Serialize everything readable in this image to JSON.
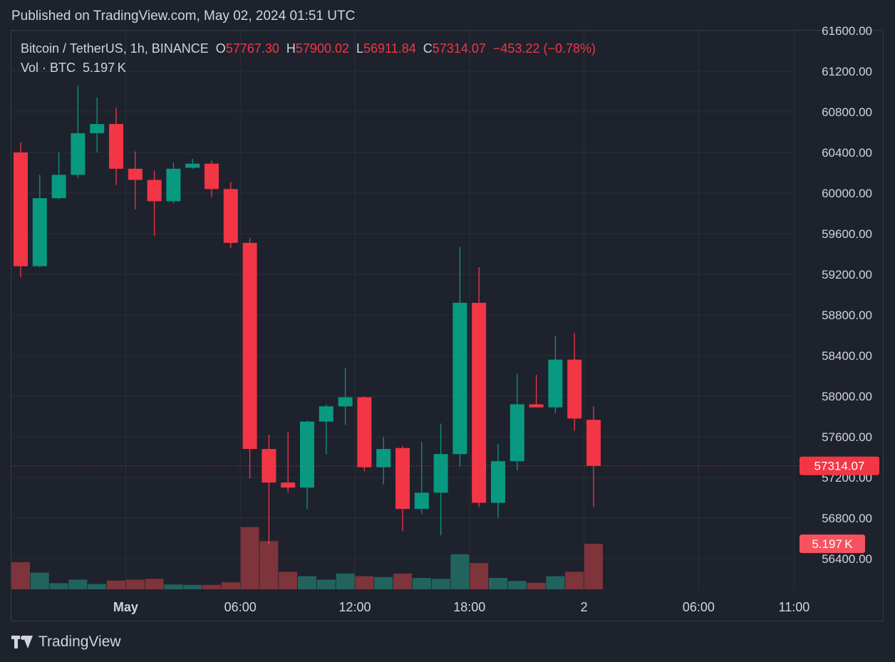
{
  "header": {
    "published": "Published on TradingView.com, May 02, 2024 01:51 UTC"
  },
  "legend": {
    "symbol": "Bitcoin / TetherUS, 1h, BINANCE",
    "o_label": "O",
    "o_value": "57767.30",
    "h_label": "H",
    "h_value": "57900.02",
    "l_label": "L",
    "l_value": "56911.84",
    "c_label": "C",
    "c_value": "57314.07",
    "change": "−453.22 (−0.78%)",
    "vol_label": "Vol · BTC",
    "vol_value": "5.197 K"
  },
  "footer": {
    "brand": "TradingView",
    "logo_icon": "tradingview-logo-icon"
  },
  "colors": {
    "background": "#1e222d",
    "up": "#089981",
    "down": "#f23645",
    "up_volume": "#22645d",
    "down_volume": "#7d343a",
    "grid": "#2a2e39",
    "text": "#d1d4dc"
  },
  "chart_data": {
    "type": "candlestick",
    "symbol": "Bitcoin / TetherUS",
    "interval": "1h",
    "price_ticks": [
      "56400.00",
      "56800.00",
      "57200.00",
      "57600.00",
      "58000.00",
      "58400.00",
      "58800.00",
      "59200.00",
      "59600.00",
      "60000.00",
      "60400.00",
      "60800.00",
      "61200.00",
      "61600.00"
    ],
    "ylim": [
      56100,
      61600
    ],
    "x_ticks": [
      {
        "label": "May",
        "bar": 5.5,
        "bold": true
      },
      {
        "label": "06:00",
        "bar": 11.5,
        "bold": false
      },
      {
        "label": "12:00",
        "bar": 17.5,
        "bold": false
      },
      {
        "label": "18:00",
        "bar": 23.5,
        "bold": false
      },
      {
        "label": "2",
        "bar": 29.5,
        "bold": false
      },
      {
        "label": "06:00",
        "bar": 35.5,
        "bold": false
      },
      {
        "label": "11:00",
        "bar": 40.5,
        "bold": false
      }
    ],
    "last_price_label": "57314.07",
    "last_volume_label": "5.197 K",
    "last_price": 57314.07,
    "candles": [
      {
        "o": 60400,
        "h": 60500,
        "l": 59170,
        "c": 59280,
        "v": 3.1
      },
      {
        "o": 59280,
        "h": 60180,
        "l": 59270,
        "c": 59950,
        "v": 1.9
      },
      {
        "o": 59950,
        "h": 60400,
        "l": 59940,
        "c": 60180,
        "v": 0.7
      },
      {
        "o": 60180,
        "h": 61060,
        "l": 60150,
        "c": 60590,
        "v": 1.1
      },
      {
        "o": 60590,
        "h": 60940,
        "l": 60400,
        "c": 60680,
        "v": 0.6
      },
      {
        "o": 60680,
        "h": 60840,
        "l": 60080,
        "c": 60240,
        "v": 1.0
      },
      {
        "o": 60240,
        "h": 60410,
        "l": 59840,
        "c": 60130,
        "v": 1.1
      },
      {
        "o": 60130,
        "h": 60220,
        "l": 59580,
        "c": 59920,
        "v": 1.2
      },
      {
        "o": 59920,
        "h": 60300,
        "l": 59900,
        "c": 60240,
        "v": 0.55
      },
      {
        "o": 60250,
        "h": 60340,
        "l": 60240,
        "c": 60290,
        "v": 0.5
      },
      {
        "o": 60290,
        "h": 60320,
        "l": 59960,
        "c": 60040,
        "v": 0.5
      },
      {
        "o": 60040,
        "h": 60110,
        "l": 59460,
        "c": 59510,
        "v": 0.8
      },
      {
        "o": 59510,
        "h": 59560,
        "l": 57190,
        "c": 57480,
        "v": 7.1
      },
      {
        "o": 57480,
        "h": 57620,
        "l": 56540,
        "c": 57150,
        "v": 5.5
      },
      {
        "o": 57150,
        "h": 57650,
        "l": 57050,
        "c": 57100,
        "v": 2.0
      },
      {
        "o": 57100,
        "h": 57760,
        "l": 56890,
        "c": 57750,
        "v": 1.5
      },
      {
        "o": 57750,
        "h": 57920,
        "l": 57430,
        "c": 57900,
        "v": 1.1
      },
      {
        "o": 57900,
        "h": 58280,
        "l": 57720,
        "c": 57990,
        "v": 1.8
      },
      {
        "o": 57990,
        "h": 58000,
        "l": 57260,
        "c": 57300,
        "v": 1.5
      },
      {
        "o": 57300,
        "h": 57600,
        "l": 57130,
        "c": 57480,
        "v": 1.4
      },
      {
        "o": 57490,
        "h": 57510,
        "l": 56670,
        "c": 56890,
        "v": 1.8
      },
      {
        "o": 56890,
        "h": 57550,
        "l": 56840,
        "c": 57050,
        "v": 1.3
      },
      {
        "o": 57050,
        "h": 57730,
        "l": 56630,
        "c": 57430,
        "v": 1.2
      },
      {
        "o": 57430,
        "h": 59470,
        "l": 57310,
        "c": 58920,
        "v": 4.0
      },
      {
        "o": 58920,
        "h": 59270,
        "l": 56910,
        "c": 56950,
        "v": 3.0
      },
      {
        "o": 56950,
        "h": 57530,
        "l": 56800,
        "c": 57360,
        "v": 1.3
      },
      {
        "o": 57360,
        "h": 58220,
        "l": 57270,
        "c": 57920,
        "v": 0.95
      },
      {
        "o": 57920,
        "h": 58210,
        "l": 57890,
        "c": 57890,
        "v": 0.75
      },
      {
        "o": 57890,
        "h": 58590,
        "l": 57830,
        "c": 58360,
        "v": 1.5
      },
      {
        "o": 58360,
        "h": 58620,
        "l": 57660,
        "c": 57780,
        "v": 2.0
      },
      {
        "o": 57767.3,
        "h": 57900.02,
        "l": 56911.84,
        "c": 57314.07,
        "v": 5.197
      }
    ]
  }
}
